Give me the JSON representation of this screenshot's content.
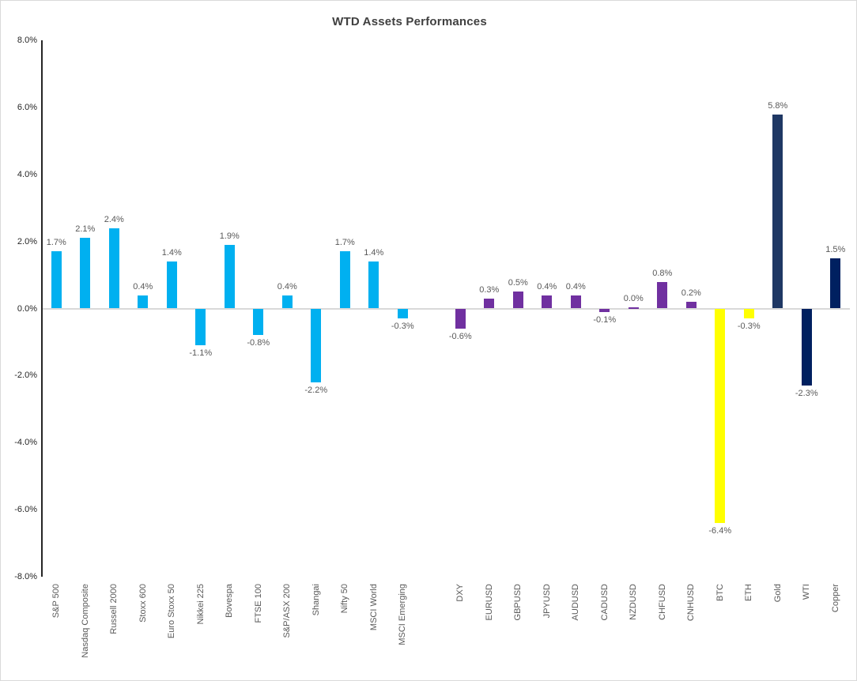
{
  "chart_data": {
    "type": "bar",
    "title": "WTD Assets Performances",
    "xlabel": "",
    "ylabel": "",
    "ylim": [
      -8,
      8
    ],
    "grid": false,
    "legend_position": "none",
    "yticks": [
      {
        "value": 8,
        "label": "8.0%"
      },
      {
        "value": 6,
        "label": "6.0%"
      },
      {
        "value": 4,
        "label": "4.0%"
      },
      {
        "value": 2,
        "label": "2.0%"
      },
      {
        "value": 0,
        "label": "0.0%"
      },
      {
        "value": -2,
        "label": "-2.0%"
      },
      {
        "value": -4,
        "label": "-4.0%"
      },
      {
        "value": -6,
        "label": "-6.0%"
      },
      {
        "value": -8,
        "label": "-8.0%"
      }
    ],
    "colors": {
      "equities": "#00B0F0",
      "fx": "#7030A0",
      "crypto": "#FFFF00",
      "commodities_gold": "#1F3864",
      "commodities_dark": "#002060",
      "axis_line": "#262626",
      "zero_line": "#D9D9D9",
      "tick_label": "#262626",
      "value_label": "#595959",
      "category_label": "#595959",
      "title": "#404040",
      "background": "#FFFFFF",
      "border": "#D9D9D9"
    },
    "groups": [
      {
        "name": "equity-indices",
        "color": "#00B0F0",
        "gap_before": 0,
        "items": [
          {
            "label": "S&P 500",
            "value": 1.7,
            "display": "1.7%"
          },
          {
            "label": "Nasdaq Composite",
            "value": 2.1,
            "display": "2.1%"
          },
          {
            "label": "Russell 2000",
            "value": 2.4,
            "display": "2.4%"
          },
          {
            "label": "Stoxx 600",
            "value": 0.4,
            "display": "0.4%"
          },
          {
            "label": "Euro Stoxx 50",
            "value": 1.4,
            "display": "1.4%"
          },
          {
            "label": "Nikkei 225",
            "value": -1.1,
            "display": "-1.1%"
          },
          {
            "label": "Bovespa",
            "value": 1.9,
            "display": "1.9%"
          },
          {
            "label": "FTSE 100",
            "value": -0.8,
            "display": "-0.8%"
          },
          {
            "label": "S&P/ASX 200",
            "value": 0.4,
            "display": "0.4%"
          },
          {
            "label": "Shangai",
            "value": -2.2,
            "display": "-2.2%"
          },
          {
            "label": "Nifty 50",
            "value": 1.7,
            "display": "1.7%"
          },
          {
            "label": "MSCI World",
            "value": 1.4,
            "display": "1.4%"
          },
          {
            "label": "MSCI Emerging",
            "value": -0.3,
            "display": "-0.3%"
          }
        ]
      },
      {
        "name": "fx",
        "color": "#7030A0",
        "gap_before": 1,
        "items": [
          {
            "label": "DXY",
            "value": -0.6,
            "display": "-0.6%"
          },
          {
            "label": "EURUSD",
            "value": 0.3,
            "display": "0.3%"
          },
          {
            "label": "GBPUSD",
            "value": 0.5,
            "display": "0.5%"
          },
          {
            "label": "JPYUSD",
            "value": 0.4,
            "display": "0.4%"
          },
          {
            "label": "AUDUSD",
            "value": 0.4,
            "display": "0.4%"
          },
          {
            "label": "CADUSD",
            "value": -0.1,
            "display": "-0.1%"
          },
          {
            "label": "NZDUSD",
            "value": 0.0,
            "display": "0.0%"
          },
          {
            "label": "CHFUSD",
            "value": 0.8,
            "display": "0.8%"
          },
          {
            "label": "CNHUSD",
            "value": 0.2,
            "display": "0.2%"
          }
        ]
      },
      {
        "name": "crypto",
        "color": "#FFFF00",
        "gap_before": 0,
        "items": [
          {
            "label": "BTC",
            "value": -6.4,
            "display": "-6.4%"
          },
          {
            "label": "ETH",
            "value": -0.3,
            "display": "-0.3%"
          }
        ]
      },
      {
        "name": "commodities",
        "color": "#002060",
        "gap_before": 0,
        "items": [
          {
            "label": "Gold",
            "value": 5.8,
            "display": "5.8%",
            "color": "#1F3864"
          },
          {
            "label": "WTI",
            "value": -2.3,
            "display": "-2.3%",
            "color": "#002060"
          },
          {
            "label": "Copper",
            "value": 1.5,
            "display": "1.5%",
            "color": "#002060"
          }
        ]
      }
    ]
  }
}
